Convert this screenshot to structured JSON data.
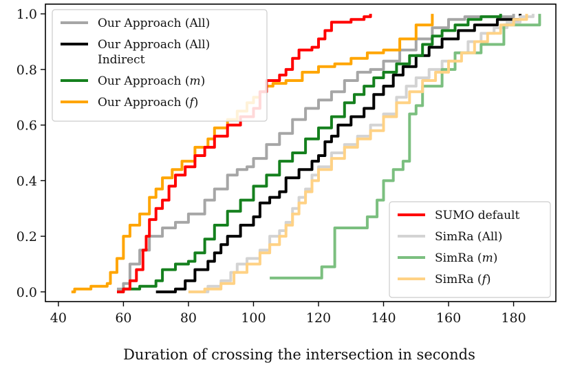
{
  "chart_data": {
    "type": "line",
    "title": "",
    "xlabel": "Duration of crossing the intersection in seconds",
    "ylabel": "",
    "xlim": [
      36,
      193
    ],
    "ylim": [
      -0.035,
      1.035
    ],
    "x_ticks": [
      "40",
      "60",
      "80",
      "100",
      "120",
      "140",
      "160",
      "180"
    ],
    "y_ticks": [
      "0.0",
      "0.2",
      "0.4",
      "0.6",
      "0.8",
      "1.0"
    ],
    "grid": false,
    "legends": [
      {
        "placement": "upper-left",
        "entries": [
          {
            "label": "Our Approach (All)",
            "series_index": 0
          },
          {
            "label": "Our Approach (All)",
            "label2": "Indirect",
            "series_index": 1
          },
          {
            "label": "Our Approach (",
            "italic": "m",
            "suffix": ")",
            "series_index": 2
          },
          {
            "label": "Our Approach (",
            "italic": "f",
            "suffix": ")",
            "series_index": 3
          }
        ]
      },
      {
        "placement": "lower-right",
        "entries": [
          {
            "label": "SUMO default",
            "series_index": 4
          },
          {
            "label": "SimRa (All)",
            "series_index": 5
          },
          {
            "label": "SimRa (",
            "italic": "m",
            "suffix": ")",
            "series_index": 6
          },
          {
            "label": "SimRa (",
            "italic": "f",
            "suffix": ")",
            "series_index": 7
          }
        ]
      }
    ],
    "series": [
      {
        "name": "Our Approach (All)",
        "color": "#a6a6a6",
        "points": [
          [
            58,
            0.01
          ],
          [
            60,
            0.03
          ],
          [
            62,
            0.1
          ],
          [
            65,
            0.15
          ],
          [
            68,
            0.2
          ],
          [
            72,
            0.23
          ],
          [
            76,
            0.25
          ],
          [
            80,
            0.28
          ],
          [
            85,
            0.33
          ],
          [
            88,
            0.37
          ],
          [
            92,
            0.42
          ],
          [
            95,
            0.44
          ],
          [
            98,
            0.45
          ],
          [
            100,
            0.48
          ],
          [
            104,
            0.53
          ],
          [
            108,
            0.57
          ],
          [
            112,
            0.62
          ],
          [
            116,
            0.66
          ],
          [
            120,
            0.69
          ],
          [
            124,
            0.72
          ],
          [
            128,
            0.76
          ],
          [
            132,
            0.79
          ],
          [
            136,
            0.8
          ],
          [
            140,
            0.83
          ],
          [
            145,
            0.87
          ],
          [
            150,
            0.91
          ],
          [
            155,
            0.95
          ],
          [
            160,
            0.98
          ],
          [
            165,
            0.99
          ],
          [
            180,
            1.0
          ]
        ]
      },
      {
        "name": "Our Approach (All) Indirect",
        "color": "#000000",
        "points": [
          [
            70,
            0.0
          ],
          [
            76,
            0.01
          ],
          [
            79,
            0.04
          ],
          [
            82,
            0.08
          ],
          [
            86,
            0.11
          ],
          [
            88,
            0.14
          ],
          [
            90,
            0.17
          ],
          [
            92,
            0.2
          ],
          [
            96,
            0.24
          ],
          [
            100,
            0.27
          ],
          [
            102,
            0.32
          ],
          [
            105,
            0.34
          ],
          [
            108,
            0.36
          ],
          [
            110,
            0.41
          ],
          [
            114,
            0.44
          ],
          [
            118,
            0.47
          ],
          [
            120,
            0.49
          ],
          [
            122,
            0.54
          ],
          [
            124,
            0.56
          ],
          [
            126,
            0.6
          ],
          [
            130,
            0.63
          ],
          [
            134,
            0.66
          ],
          [
            137,
            0.71
          ],
          [
            140,
            0.74
          ],
          [
            143,
            0.78
          ],
          [
            146,
            0.81
          ],
          [
            150,
            0.85
          ],
          [
            154,
            0.88
          ],
          [
            158,
            0.91
          ],
          [
            163,
            0.94
          ],
          [
            168,
            0.96
          ],
          [
            175,
            0.98
          ],
          [
            182,
            1.0
          ]
        ]
      },
      {
        "name": "Our Approach (m)",
        "color": "#15801e",
        "points": [
          [
            58,
            0.0
          ],
          [
            60,
            0.01
          ],
          [
            65,
            0.02
          ],
          [
            70,
            0.04
          ],
          [
            72,
            0.08
          ],
          [
            76,
            0.1
          ],
          [
            80,
            0.11
          ],
          [
            82,
            0.14
          ],
          [
            85,
            0.19
          ],
          [
            88,
            0.24
          ],
          [
            92,
            0.29
          ],
          [
            96,
            0.33
          ],
          [
            100,
            0.38
          ],
          [
            104,
            0.42
          ],
          [
            108,
            0.47
          ],
          [
            112,
            0.5
          ],
          [
            116,
            0.55
          ],
          [
            120,
            0.59
          ],
          [
            124,
            0.63
          ],
          [
            128,
            0.68
          ],
          [
            131,
            0.71
          ],
          [
            134,
            0.74
          ],
          [
            137,
            0.77
          ],
          [
            140,
            0.79
          ],
          [
            144,
            0.82
          ],
          [
            148,
            0.85
          ],
          [
            152,
            0.89
          ],
          [
            155,
            0.92
          ],
          [
            158,
            0.94
          ],
          [
            162,
            0.96
          ],
          [
            166,
            0.98
          ],
          [
            170,
            0.99
          ],
          [
            176,
            1.0
          ]
        ]
      },
      {
        "name": "Our Approach (f)",
        "color": "#ffa500",
        "points": [
          [
            44,
            0.0
          ],
          [
            45,
            0.01
          ],
          [
            50,
            0.02
          ],
          [
            55,
            0.03
          ],
          [
            56,
            0.07
          ],
          [
            58,
            0.12
          ],
          [
            60,
            0.2
          ],
          [
            62,
            0.24
          ],
          [
            65,
            0.28
          ],
          [
            68,
            0.34
          ],
          [
            70,
            0.37
          ],
          [
            72,
            0.41
          ],
          [
            75,
            0.44
          ],
          [
            78,
            0.47
          ],
          [
            82,
            0.52
          ],
          [
            86,
            0.55
          ],
          [
            88,
            0.59
          ],
          [
            92,
            0.62
          ],
          [
            95,
            0.65
          ],
          [
            98,
            0.68
          ],
          [
            100,
            0.7
          ],
          [
            102,
            0.72
          ],
          [
            104,
            0.74
          ],
          [
            106,
            0.75
          ],
          [
            110,
            0.76
          ],
          [
            115,
            0.79
          ],
          [
            120,
            0.81
          ],
          [
            125,
            0.82
          ],
          [
            130,
            0.84
          ],
          [
            135,
            0.86
          ],
          [
            140,
            0.87
          ],
          [
            145,
            0.91
          ],
          [
            150,
            0.96
          ],
          [
            155,
            1.0
          ]
        ]
      },
      {
        "name": "SUMO default",
        "color": "#ff0000",
        "points": [
          [
            58,
            0.0
          ],
          [
            60,
            0.01
          ],
          [
            62,
            0.04
          ],
          [
            64,
            0.08
          ],
          [
            66,
            0.15
          ],
          [
            67,
            0.2
          ],
          [
            68,
            0.26
          ],
          [
            70,
            0.3
          ],
          [
            72,
            0.33
          ],
          [
            74,
            0.38
          ],
          [
            76,
            0.42
          ],
          [
            79,
            0.45
          ],
          [
            82,
            0.49
          ],
          [
            85,
            0.52
          ],
          [
            88,
            0.56
          ],
          [
            92,
            0.6
          ],
          [
            96,
            0.63
          ],
          [
            100,
            0.66
          ],
          [
            102,
            0.72
          ],
          [
            104,
            0.76
          ],
          [
            108,
            0.78
          ],
          [
            110,
            0.8
          ],
          [
            112,
            0.84
          ],
          [
            114,
            0.87
          ],
          [
            118,
            0.88
          ],
          [
            120,
            0.91
          ],
          [
            122,
            0.94
          ],
          [
            124,
            0.97
          ],
          [
            130,
            0.98
          ],
          [
            134,
            0.99
          ],
          [
            136,
            1.0
          ]
        ]
      },
      {
        "name": "SimRa (All)",
        "color": "#d3d3d3",
        "points": [
          [
            80,
            0.0
          ],
          [
            86,
            0.02
          ],
          [
            90,
            0.04
          ],
          [
            93,
            0.07
          ],
          [
            95,
            0.1
          ],
          [
            98,
            0.12
          ],
          [
            102,
            0.15
          ],
          [
            105,
            0.2
          ],
          [
            108,
            0.22
          ],
          [
            110,
            0.25
          ],
          [
            112,
            0.3
          ],
          [
            114,
            0.34
          ],
          [
            116,
            0.37
          ],
          [
            118,
            0.42
          ],
          [
            120,
            0.45
          ],
          [
            124,
            0.5
          ],
          [
            128,
            0.53
          ],
          [
            132,
            0.56
          ],
          [
            136,
            0.6
          ],
          [
            140,
            0.64
          ],
          [
            144,
            0.7
          ],
          [
            147,
            0.74
          ],
          [
            150,
            0.77
          ],
          [
            154,
            0.8
          ],
          [
            158,
            0.83
          ],
          [
            162,
            0.86
          ],
          [
            166,
            0.9
          ],
          [
            170,
            0.93
          ],
          [
            174,
            0.95
          ],
          [
            178,
            0.97
          ],
          [
            182,
            0.99
          ],
          [
            186,
            1.0
          ]
        ]
      },
      {
        "name": "SimRa (m)",
        "color": "#7bbf7f",
        "points": [
          [
            105,
            0.05
          ],
          [
            121,
            0.09
          ],
          [
            125,
            0.23
          ],
          [
            135,
            0.27
          ],
          [
            138,
            0.33
          ],
          [
            140,
            0.4
          ],
          [
            143,
            0.44
          ],
          [
            146,
            0.47
          ],
          [
            148,
            0.54
          ],
          [
            148,
            0.64
          ],
          [
            150,
            0.67
          ],
          [
            152,
            0.74
          ],
          [
            158,
            0.8
          ],
          [
            162,
            0.86
          ],
          [
            170,
            0.89
          ],
          [
            177,
            0.91
          ],
          [
            177,
            0.96
          ],
          [
            188,
            1.0
          ]
        ]
      },
      {
        "name": "SimRa (f)",
        "color": "#ffd285",
        "points": [
          [
            80,
            0.0
          ],
          [
            85,
            0.01
          ],
          [
            90,
            0.03
          ],
          [
            94,
            0.07
          ],
          [
            98,
            0.1
          ],
          [
            102,
            0.14
          ],
          [
            105,
            0.17
          ],
          [
            108,
            0.2
          ],
          [
            110,
            0.24
          ],
          [
            112,
            0.28
          ],
          [
            114,
            0.32
          ],
          [
            116,
            0.36
          ],
          [
            118,
            0.4
          ],
          [
            120,
            0.44
          ],
          [
            124,
            0.48
          ],
          [
            128,
            0.52
          ],
          [
            132,
            0.55
          ],
          [
            136,
            0.58
          ],
          [
            140,
            0.63
          ],
          [
            144,
            0.68
          ],
          [
            148,
            0.72
          ],
          [
            152,
            0.76
          ],
          [
            156,
            0.79
          ],
          [
            160,
            0.83
          ],
          [
            164,
            0.86
          ],
          [
            168,
            0.9
          ],
          [
            172,
            0.93
          ],
          [
            176,
            0.96
          ],
          [
            180,
            0.98
          ],
          [
            184,
            1.0
          ]
        ]
      }
    ]
  }
}
